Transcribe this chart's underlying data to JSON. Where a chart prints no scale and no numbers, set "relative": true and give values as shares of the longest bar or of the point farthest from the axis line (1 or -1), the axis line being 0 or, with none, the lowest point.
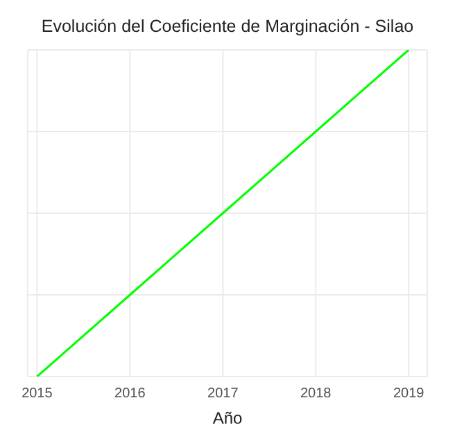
{
  "chart_data": {
    "type": "line",
    "title": "Evolución del Coeficiente de Marginación - Silao",
    "xlabel": "Año",
    "x": [
      2015,
      2016,
      2017,
      2018,
      2019
    ],
    "series": [
      {
        "color": "#00ff00",
        "values": [
          0,
          0.25,
          0.5,
          0.75,
          1
        ]
      }
    ],
    "relative": true,
    "xlim": [
      2014.9,
      2019.2
    ],
    "xticks": [
      2015,
      2016,
      2017,
      2018,
      2019
    ],
    "grid": true,
    "marker": "none",
    "legend": false
  }
}
